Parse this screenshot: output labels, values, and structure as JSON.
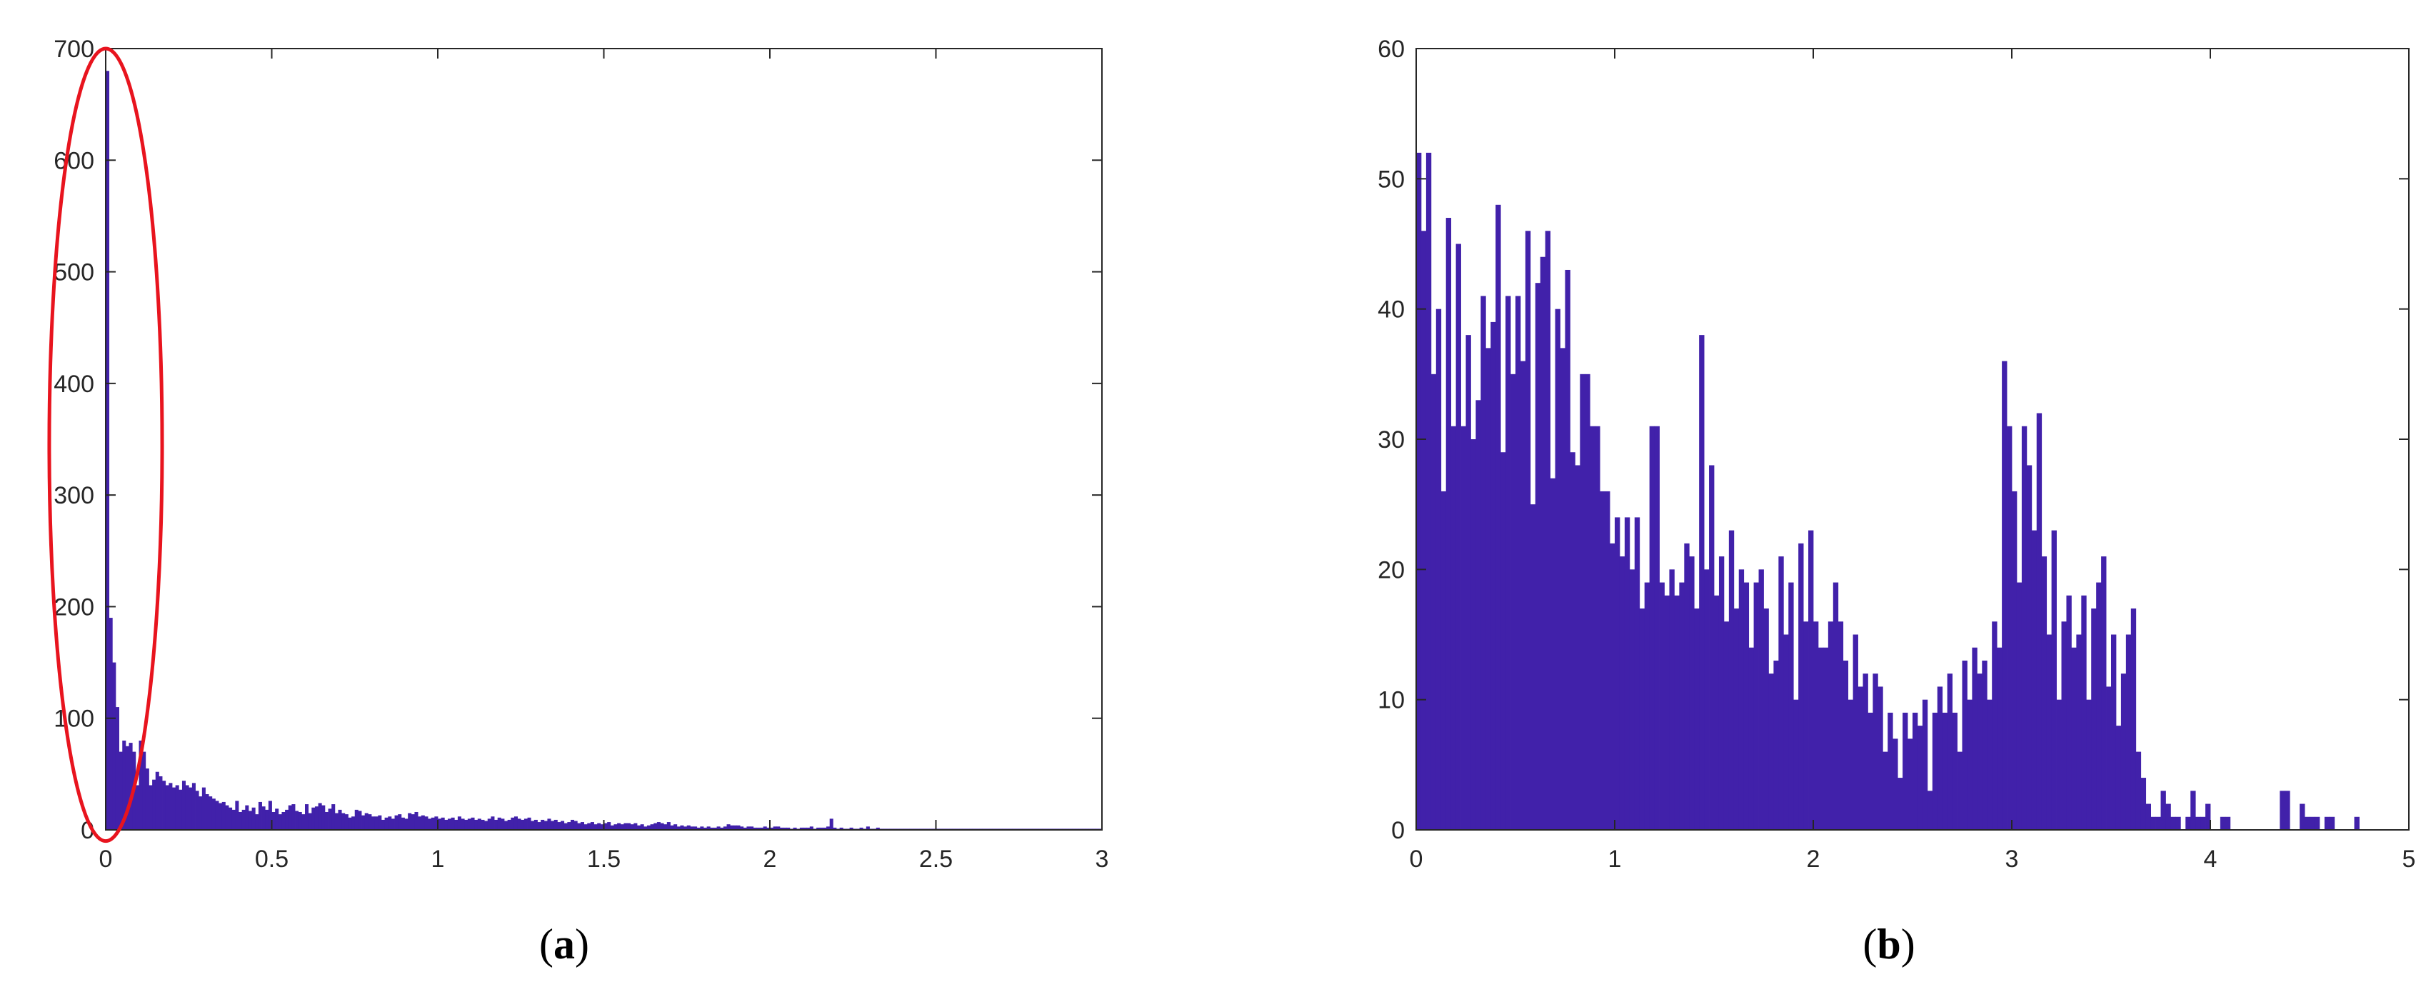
{
  "colors": {
    "bar": "#4121AA",
    "highlight": "#E8141E",
    "axis": "#262626",
    "background": "#FFFFFF"
  },
  "panels": [
    {
      "caption_open": "(",
      "caption_letter": "a",
      "caption_close": ")"
    },
    {
      "caption_open": "(",
      "caption_letter": "b",
      "caption_close": ")"
    }
  ],
  "chart_data": [
    {
      "type": "bar",
      "subtype": "histogram",
      "title": "",
      "xlabel": "",
      "ylabel": "",
      "xlim": [
        0,
        3
      ],
      "ylim": [
        0,
        700
      ],
      "xticks": [
        0,
        0.5,
        1,
        1.5,
        2,
        2.5,
        3
      ],
      "xtick_labels": [
        "0",
        "0.5",
        "1",
        "1.5",
        "2",
        "2.5",
        "3"
      ],
      "yticks": [
        0,
        100,
        200,
        300,
        400,
        500,
        600,
        700
      ],
      "ytick_labels": [
        "0",
        "100",
        "200",
        "300",
        "400",
        "500",
        "600",
        "700"
      ],
      "grid": false,
      "box": true,
      "bin_width": 0.01,
      "bin_start": 0,
      "values": [
        680,
        190,
        150,
        110,
        70,
        80,
        75,
        78,
        70,
        40,
        80,
        70,
        55,
        40,
        45,
        52,
        48,
        44,
        40,
        42,
        38,
        40,
        36,
        44,
        40,
        38,
        42,
        35,
        30,
        38,
        32,
        30,
        28,
        26,
        24,
        25,
        22,
        20,
        18,
        26,
        16,
        18,
        22,
        17,
        20,
        14,
        25,
        21,
        18,
        26,
        16,
        19,
        14,
        16,
        18,
        22,
        23,
        17,
        16,
        14,
        23,
        15,
        20,
        21,
        24,
        22,
        16,
        19,
        23,
        15,
        18,
        15,
        14,
        11,
        12,
        18,
        17,
        13,
        15,
        14,
        12,
        12,
        13,
        9,
        11,
        12,
        10,
        13,
        14,
        11,
        10,
        15,
        14,
        16,
        12,
        13,
        12,
        10,
        11,
        12,
        10,
        11,
        9,
        10,
        11,
        9,
        12,
        10,
        9,
        10,
        11,
        9,
        10,
        9,
        8,
        10,
        12,
        9,
        11,
        10,
        8,
        9,
        11,
        12,
        10,
        9,
        10,
        11,
        8,
        9,
        7,
        9,
        8,
        10,
        8,
        9,
        7,
        8,
        6,
        7,
        9,
        8,
        6,
        7,
        5,
        6,
        7,
        5,
        6,
        5,
        6,
        7,
        4,
        5,
        6,
        5,
        6,
        6,
        5,
        6,
        4,
        5,
        3,
        4,
        5,
        6,
        7,
        6,
        5,
        7,
        4,
        5,
        3,
        4,
        3,
        4,
        3,
        3,
        2,
        3,
        2,
        3,
        2,
        2,
        3,
        2,
        3,
        5,
        4,
        4,
        4,
        3,
        2,
        3,
        3,
        2,
        2,
        2,
        3,
        2,
        2,
        3,
        3,
        2,
        2,
        2,
        1,
        2,
        1,
        2,
        2,
        2,
        3,
        1,
        2,
        2,
        2,
        3,
        10,
        2,
        1,
        2,
        1,
        1,
        2,
        1,
        1,
        2,
        1,
        3,
        1,
        1,
        2,
        1,
        1,
        1,
        1,
        1,
        1,
        1,
        1,
        1,
        1,
        1,
        1,
        1,
        1,
        1,
        1,
        1,
        1,
        1,
        1,
        1,
        1,
        1,
        1,
        1,
        1,
        1,
        1,
        1,
        1,
        1,
        1,
        1,
        1,
        1,
        1,
        1,
        1,
        1,
        1,
        1,
        1,
        1,
        1,
        1,
        1,
        1,
        1,
        1,
        1,
        1,
        1,
        1,
        1,
        1,
        1,
        1,
        1,
        1,
        1,
        1,
        1,
        1,
        1,
        1,
        1,
        1,
        1,
        1,
        1,
        1
      ],
      "annotation": {
        "shape": "ellipse",
        "center": [
          0.0,
          345
        ],
        "radius_x": 0.17,
        "radius_y": 355,
        "color": "#E8141E"
      }
    },
    {
      "type": "bar",
      "subtype": "histogram",
      "title": "",
      "xlabel": "",
      "ylabel": "",
      "xlim": [
        0,
        5
      ],
      "ylim": [
        0,
        60
      ],
      "xticks": [
        0,
        1,
        2,
        3,
        4,
        5
      ],
      "xtick_labels": [
        "0",
        "1",
        "2",
        "3",
        "4",
        "5"
      ],
      "yticks": [
        0,
        10,
        20,
        30,
        40,
        50,
        60
      ],
      "ytick_labels": [
        "0",
        "10",
        "20",
        "30",
        "40",
        "50",
        "60"
      ],
      "grid": false,
      "box": true,
      "bin_width": 0.025,
      "bin_start": 0,
      "values": [
        52,
        46,
        52,
        35,
        40,
        26,
        47,
        31,
        45,
        31,
        38,
        30,
        33,
        41,
        37,
        39,
        48,
        29,
        41,
        35,
        41,
        36,
        46,
        25,
        42,
        44,
        46,
        27,
        40,
        37,
        43,
        29,
        28,
        35,
        35,
        31,
        31,
        26,
        26,
        22,
        24,
        21,
        24,
        20,
        24,
        17,
        19,
        31,
        31,
        19,
        18,
        20,
        18,
        19,
        22,
        21,
        17,
        38,
        20,
        28,
        18,
        21,
        16,
        23,
        17,
        20,
        19,
        14,
        19,
        20,
        17,
        12,
        13,
        21,
        15,
        19,
        10,
        22,
        16,
        23,
        16,
        14,
        14,
        16,
        19,
        16,
        13,
        10,
        15,
        11,
        12,
        9,
        12,
        11,
        6,
        9,
        7,
        4,
        9,
        7,
        9,
        8,
        10,
        3,
        9,
        11,
        9,
        12,
        9,
        6,
        13,
        10,
        14,
        12,
        13,
        10,
        16,
        14,
        36,
        31,
        26,
        19,
        31,
        28,
        23,
        32,
        21,
        15,
        23,
        10,
        16,
        18,
        14,
        15,
        18,
        10,
        17,
        19,
        21,
        11,
        15,
        8,
        12,
        15,
        17,
        6,
        4,
        2,
        1,
        1,
        3,
        2,
        1,
        1,
        0,
        1,
        3,
        1,
        1,
        2,
        0,
        0,
        1,
        1,
        0,
        0,
        0,
        0,
        0,
        0,
        0,
        0,
        0,
        0,
        3,
        3,
        0,
        0,
        2,
        1,
        1,
        1,
        0,
        1,
        1,
        0,
        0,
        0,
        0,
        1,
        0,
        0,
        0,
        0,
        0,
        0,
        0,
        0,
        0,
        0,
        0
      ]
    }
  ]
}
